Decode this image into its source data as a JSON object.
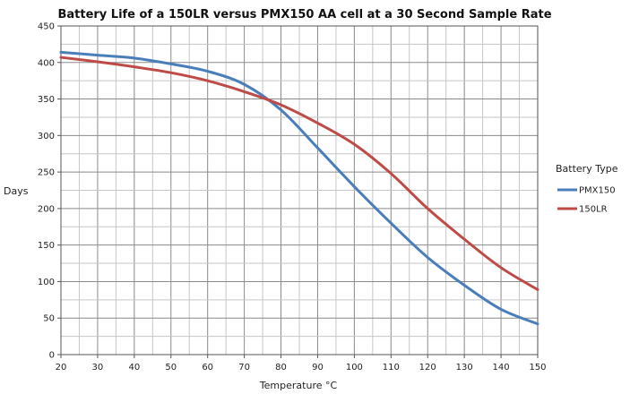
{
  "chart_data": {
    "type": "line",
    "title": "Battery Life of a 150LR versus PMX150 AA cell at a 30 Second Sample Rate",
    "xlabel": "Temperature °C",
    "ylabel": "Days",
    "xlim": [
      20,
      150
    ],
    "ylim": [
      0,
      450
    ],
    "x_ticks": [
      20,
      30,
      40,
      50,
      60,
      70,
      80,
      90,
      100,
      110,
      120,
      130,
      140,
      150
    ],
    "y_ticks": [
      0,
      50,
      100,
      150,
      200,
      250,
      300,
      350,
      400,
      450
    ],
    "x_tick_labels": [
      "20",
      "30",
      "40",
      "50",
      "60",
      "70",
      "80",
      "90",
      "100",
      "110",
      "120",
      "130",
      "140",
      "150"
    ],
    "y_tick_labels": [
      "0",
      "50",
      "100",
      "150",
      "200",
      "250",
      "300",
      "350",
      "400",
      "450"
    ],
    "grid": true,
    "legend": {
      "title": "Battery Type",
      "placement": "right"
    },
    "x": [
      20,
      30,
      40,
      50,
      60,
      70,
      80,
      90,
      100,
      110,
      120,
      130,
      140,
      150
    ],
    "series": [
      {
        "name": "PMX150",
        "color": "#4a7ebb",
        "values": [
          414,
          410,
          406,
          398,
          388,
          370,
          335,
          283,
          230,
          180,
          133,
          95,
          62,
          42
        ]
      },
      {
        "name": "150LR",
        "color": "#be4b48",
        "values": [
          407,
          401,
          394,
          386,
          375,
          360,
          342,
          317,
          288,
          248,
          200,
          158,
          119,
          89
        ]
      }
    ]
  }
}
